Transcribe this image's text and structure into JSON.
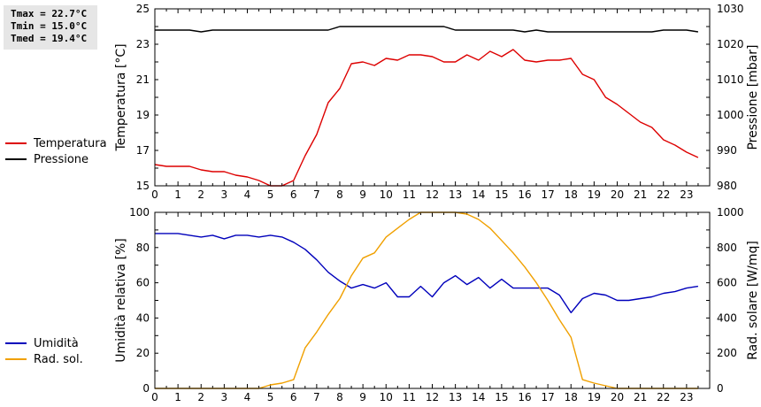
{
  "stats": {
    "tmax": "Tmax = 22.7°C",
    "tmin": "Tmin = 15.0°C",
    "tmed": "Tmed = 19.4°C"
  },
  "chart_data": [
    {
      "type": "line",
      "xlim": [
        0,
        24
      ],
      "x_ticks": [
        0,
        1,
        2,
        3,
        4,
        5,
        6,
        7,
        8,
        9,
        10,
        11,
        12,
        13,
        14,
        15,
        16,
        17,
        18,
        19,
        20,
        21,
        22,
        23
      ],
      "ylabel": "Temperatura [°C]",
      "ylim": [
        15,
        25
      ],
      "y_ticks": [
        15,
        17,
        19,
        21,
        23,
        25
      ],
      "y2label": "Pressione [mbar]",
      "y2lim": [
        980,
        1030
      ],
      "y2_ticks": [
        980,
        990,
        1000,
        1010,
        1020,
        1030
      ],
      "legend_position": "left",
      "series": [
        {
          "name": "Temperatura",
          "axis": "left",
          "color": "#dd0000",
          "x": [
            0,
            0.5,
            1,
            1.5,
            2,
            2.5,
            3,
            3.5,
            4,
            4.5,
            5,
            5.5,
            6,
            6.5,
            7,
            7.5,
            8,
            8.5,
            9,
            9.5,
            10,
            10.5,
            11,
            11.5,
            12,
            12.5,
            13,
            13.5,
            14,
            14.5,
            15,
            15.5,
            16,
            16.5,
            17,
            17.5,
            18,
            18.5,
            19,
            19.5,
            20,
            20.5,
            21,
            21.5,
            22,
            22.5,
            23,
            23.5
          ],
          "values": [
            16.2,
            16.1,
            16.1,
            16.1,
            15.9,
            15.8,
            15.8,
            15.6,
            15.5,
            15.3,
            15.0,
            15.0,
            15.3,
            16.7,
            17.9,
            19.7,
            20.5,
            21.9,
            22.0,
            21.8,
            22.2,
            22.1,
            22.4,
            22.4,
            22.3,
            22.0,
            22.0,
            22.4,
            22.1,
            22.6,
            22.3,
            22.7,
            22.1,
            22.0,
            22.1,
            22.1,
            22.2,
            21.3,
            21.0,
            20.0,
            19.6,
            19.1,
            18.6,
            18.3,
            17.6,
            17.3,
            16.9,
            16.6
          ]
        },
        {
          "name": "Pressione",
          "axis": "right",
          "color": "#000000",
          "x": [
            0,
            1.5,
            2,
            2.5,
            7.5,
            8,
            12.5,
            13,
            15.5,
            16,
            16.5,
            17,
            21.5,
            22,
            23,
            23.5
          ],
          "values": [
            1024,
            1024,
            1023.5,
            1024,
            1024,
            1025,
            1025,
            1024,
            1024,
            1023.5,
            1024,
            1023.5,
            1023.5,
            1024,
            1024,
            1023.5
          ]
        }
      ]
    },
    {
      "type": "line",
      "xlim": [
        0,
        24
      ],
      "x_ticks": [
        0,
        1,
        2,
        3,
        4,
        5,
        6,
        7,
        8,
        9,
        10,
        11,
        12,
        13,
        14,
        15,
        16,
        17,
        18,
        19,
        20,
        21,
        22,
        23
      ],
      "ylabel": "Umidità relativa [%]",
      "ylim": [
        0,
        100
      ],
      "y_ticks": [
        0,
        20,
        40,
        60,
        80,
        100
      ],
      "y2label": "Rad. solare [W/mq]",
      "y2lim": [
        0,
        1000
      ],
      "y2_ticks": [
        0,
        200,
        400,
        600,
        800,
        1000
      ],
      "legend_position": "left",
      "series": [
        {
          "name": "Umidità",
          "axis": "left",
          "color": "#0000bb",
          "x": [
            0,
            0.5,
            1,
            1.5,
            2,
            2.5,
            3,
            3.5,
            4,
            4.5,
            5,
            5.5,
            6,
            6.5,
            7,
            7.5,
            8,
            8.5,
            9,
            9.5,
            10,
            10.5,
            11,
            11.5,
            12,
            12.5,
            13,
            13.5,
            14,
            14.5,
            15,
            15.5,
            16,
            16.5,
            17,
            17.5,
            18,
            18.5,
            19,
            19.5,
            20,
            20.5,
            21,
            21.5,
            22,
            22.5,
            23,
            23.5
          ],
          "values": [
            88,
            88,
            88,
            87,
            86,
            87,
            85,
            87,
            87,
            86,
            87,
            86,
            83,
            79,
            73,
            66,
            61,
            57,
            59,
            57,
            60,
            52,
            52,
            58,
            52,
            60,
            64,
            59,
            63,
            57,
            62,
            57,
            57,
            57,
            57,
            53,
            43,
            51,
            54,
            53,
            50,
            50,
            51,
            52,
            54,
            55,
            57,
            58
          ]
        },
        {
          "name": "Rad. sol.",
          "axis": "right",
          "color": "#f0a000",
          "x": [
            0,
            4.5,
            5,
            5.5,
            6,
            6.5,
            7,
            7.5,
            8,
            8.5,
            9,
            9.5,
            10,
            10.5,
            11,
            11.5,
            12,
            12.5,
            13,
            13.5,
            14,
            14.5,
            15,
            15.5,
            16,
            16.5,
            17,
            17.5,
            18,
            18.5,
            19,
            19.5,
            20,
            20.5,
            21,
            22,
            23,
            23.5
          ],
          "values": [
            0,
            0,
            20,
            30,
            50,
            230,
            320,
            420,
            510,
            640,
            740,
            770,
            860,
            910,
            960,
            1000,
            1000,
            1000,
            1000,
            990,
            960,
            910,
            840,
            770,
            690,
            600,
            500,
            390,
            290,
            50,
            30,
            15,
            0,
            0,
            0,
            0,
            0,
            0
          ]
        }
      ]
    }
  ]
}
